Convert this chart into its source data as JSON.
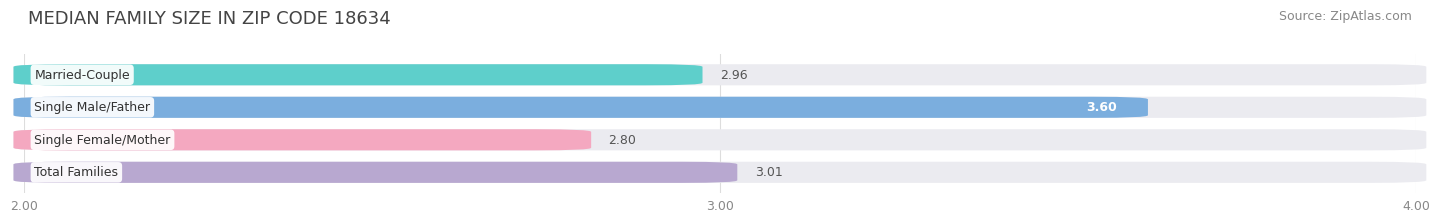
{
  "title": "MEDIAN FAMILY SIZE IN ZIP CODE 18634",
  "source": "Source: ZipAtlas.com",
  "categories": [
    "Married-Couple",
    "Single Male/Father",
    "Single Female/Mother",
    "Total Families"
  ],
  "values": [
    2.96,
    3.6,
    2.8,
    3.01
  ],
  "bar_colors": [
    "#5ecfcb",
    "#7baede",
    "#f4a8c0",
    "#b8a8d0"
  ],
  "value_inside": [
    false,
    true,
    false,
    false
  ],
  "xlim": [
    2.0,
    4.0
  ],
  "xstart": 2.0,
  "xticks": [
    2.0,
    3.0,
    4.0
  ],
  "xtick_labels": [
    "2.00",
    "3.00",
    "4.00"
  ],
  "bar_height": 0.62,
  "background_color": "#ffffff",
  "bar_bg_color": "#ebebf0",
  "title_fontsize": 13,
  "source_fontsize": 9,
  "label_fontsize": 9,
  "value_fontsize": 9,
  "tick_fontsize": 9
}
